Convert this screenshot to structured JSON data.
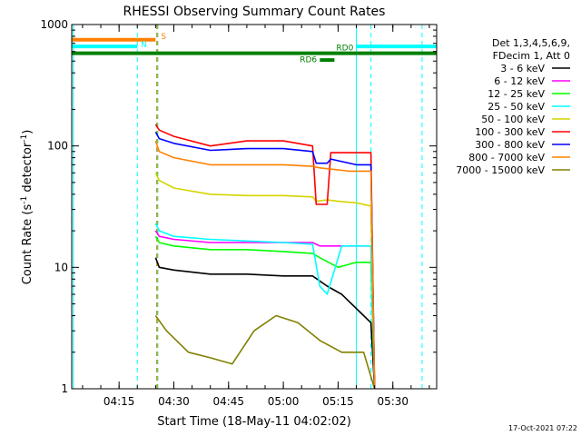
{
  "chart_data": {
    "type": "line",
    "title": "RHESSI Observing Summary Count Rates",
    "xlabel": "Start Time (18-May-11 04:02:02)",
    "ylabel_main": "Count Rate (s",
    "ylabel_sup1": "-1",
    "ylabel_mid": " detector",
    "ylabel_sup2": "-1",
    "ylabel_end": ")",
    "ylog": true,
    "ylim": [
      1,
      1000
    ],
    "x_unit": "minutes after 04:00 UT",
    "xlim": [
      2.03,
      102
    ],
    "x_ticks": [
      {
        "label": "04:15",
        "value": 15
      },
      {
        "label": "04:30",
        "value": 30
      },
      {
        "label": "04:45",
        "value": 45
      },
      {
        "label": "05:00",
        "value": 60
      },
      {
        "label": "05:15",
        "value": 75
      },
      {
        "label": "05:30",
        "value": 90
      }
    ],
    "y_ticks": [
      {
        "label": "1",
        "value": 1
      },
      {
        "label": "10",
        "value": 10
      },
      {
        "label": "100",
        "value": 100
      },
      {
        "label": "1000",
        "value": 1000
      }
    ],
    "legend": {
      "position": "top-right",
      "header1": "Det 1,3,4,5,6,9,",
      "header2": "FDecim 1, Att 0",
      "entries": [
        {
          "label": "3 - 6 keV",
          "color": "#000000"
        },
        {
          "label": "6 - 12 keV",
          "color": "#ff00ff"
        },
        {
          "label": "12 - 25 keV",
          "color": "#00ff00"
        },
        {
          "label": "25 - 50 keV",
          "color": "#00ffff"
        },
        {
          "label": "50 - 100 keV",
          "color": "#d4d400"
        },
        {
          "label": "100 - 300 keV",
          "color": "#ff0000"
        },
        {
          "label": "300 - 800 keV",
          "color": "#0000ff"
        },
        {
          "label": "800 - 7000 keV",
          "color": "#ff8000"
        },
        {
          "label": "7000 - 15000 keV",
          "color": "#808000"
        }
      ]
    },
    "series": [
      {
        "name": "3 - 6 keV",
        "color": "#000000",
        "x": [
          25,
          26,
          30,
          40,
          50,
          60,
          68,
          72,
          76,
          82,
          84,
          85
        ],
        "y": [
          12,
          10,
          9.5,
          8.8,
          8.8,
          8.5,
          8.5,
          7,
          6,
          4,
          3.5,
          1
        ]
      },
      {
        "name": "6 - 12 keV",
        "color": "#ff00ff",
        "x": [
          25,
          26,
          30,
          40,
          50,
          60,
          68,
          70,
          75,
          82,
          84,
          85
        ],
        "y": [
          20,
          18,
          17,
          16,
          16,
          16,
          16,
          15,
          15,
          15,
          15,
          1
        ]
      },
      {
        "name": "12 - 25 keV",
        "color": "#00ff00",
        "x": [
          25,
          26,
          30,
          40,
          50,
          60,
          68,
          70,
          75,
          80,
          84,
          85
        ],
        "y": [
          18,
          16,
          15,
          14,
          14,
          13.5,
          13,
          12,
          10,
          11,
          11,
          1
        ]
      },
      {
        "name": "25 - 50 keV",
        "color": "#00ffff",
        "x": [
          25,
          26,
          30,
          40,
          50,
          60,
          68,
          70,
          72,
          76,
          80,
          84,
          85
        ],
        "y": [
          23,
          20,
          18,
          17,
          16.5,
          16,
          15.5,
          7,
          6,
          15,
          15,
          15,
          1
        ]
      },
      {
        "name": "50 - 100 keV",
        "color": "#d4d400",
        "x": [
          25,
          26,
          30,
          40,
          50,
          60,
          68,
          69,
          72,
          75,
          80,
          84,
          85
        ],
        "y": [
          60,
          52,
          45,
          40,
          39,
          39,
          38,
          35,
          36,
          35,
          34,
          32,
          1
        ]
      },
      {
        "name": "100 - 300 keV",
        "color": "#ff0000",
        "x": [
          25,
          26,
          30,
          40,
          50,
          60,
          68,
          69,
          72,
          73,
          80,
          84,
          85
        ],
        "y": [
          150,
          135,
          120,
          100,
          110,
          110,
          100,
          33,
          33,
          88,
          88,
          88,
          1
        ]
      },
      {
        "name": "300 - 800 keV",
        "color": "#0000ff",
        "x": [
          25,
          26,
          30,
          40,
          50,
          60,
          68,
          69,
          72,
          73,
          80,
          84,
          85
        ],
        "y": [
          130,
          115,
          105,
          92,
          95,
          95,
          90,
          72,
          72,
          78,
          70,
          70,
          1
        ]
      },
      {
        "name": "800 - 7000 keV",
        "color": "#ff8000",
        "x": [
          25,
          26,
          30,
          40,
          50,
          60,
          68,
          70,
          74,
          78,
          84,
          85
        ],
        "y": [
          110,
          90,
          80,
          70,
          70,
          70,
          68,
          66,
          64,
          62,
          62,
          1
        ]
      },
      {
        "name": "7000 - 15000 keV",
        "color": "#808000",
        "x": [
          25,
          28,
          34,
          40,
          46,
          52,
          58,
          64,
          70,
          76,
          82,
          85
        ],
        "y": [
          4,
          3,
          2,
          1.8,
          1.6,
          3,
          4,
          3.5,
          2.5,
          2,
          2,
          1
        ]
      }
    ],
    "flags": [
      {
        "name": "S",
        "color": "#ff8000",
        "x": [
          2.03,
          25
        ],
        "y": 750
      },
      {
        "name": "N",
        "color": "#00ffff",
        "x": [
          2.03,
          20
        ],
        "y": 660
      },
      {
        "name": "N",
        "color": "#00ffff",
        "x": [
          80,
          102
        ],
        "y": 660
      },
      {
        "name": "RD0",
        "color": "#008000",
        "x": [
          2.03,
          102
        ],
        "y": 580
      },
      {
        "name": "RD6",
        "color": "#008000",
        "x": [
          70,
          74
        ],
        "y": 510
      }
    ],
    "flag_labels": [
      {
        "text": "S",
        "color": "#ff8000",
        "x": 26.5,
        "y": 760
      },
      {
        "text": "N",
        "color": "#00ffff",
        "x": 21,
        "y": 650
      },
      {
        "text": "RD0",
        "color": "#008000",
        "x": 74.5,
        "y": 610
      },
      {
        "text": "RD6",
        "color": "#008000",
        "x": 64.5,
        "y": 490
      }
    ],
    "vlines": [
      {
        "x": 2.5,
        "color": "#00ffff",
        "style": "solid"
      },
      {
        "x": 20,
        "color": "#00ffff",
        "style": "dashed"
      },
      {
        "x": 25.3,
        "color": "#ff8000",
        "style": "dashed"
      },
      {
        "x": 25.6,
        "color": "#00cc66",
        "style": "dashed"
      },
      {
        "x": 80,
        "color": "#00ffff",
        "style": "solid"
      },
      {
        "x": 84,
        "color": "#00ffff",
        "style": "dashed"
      },
      {
        "x": 98,
        "color": "#00ffff",
        "style": "dashed"
      }
    ]
  },
  "footer": {
    "datestamp": "17-Oct-2021 07:22"
  }
}
